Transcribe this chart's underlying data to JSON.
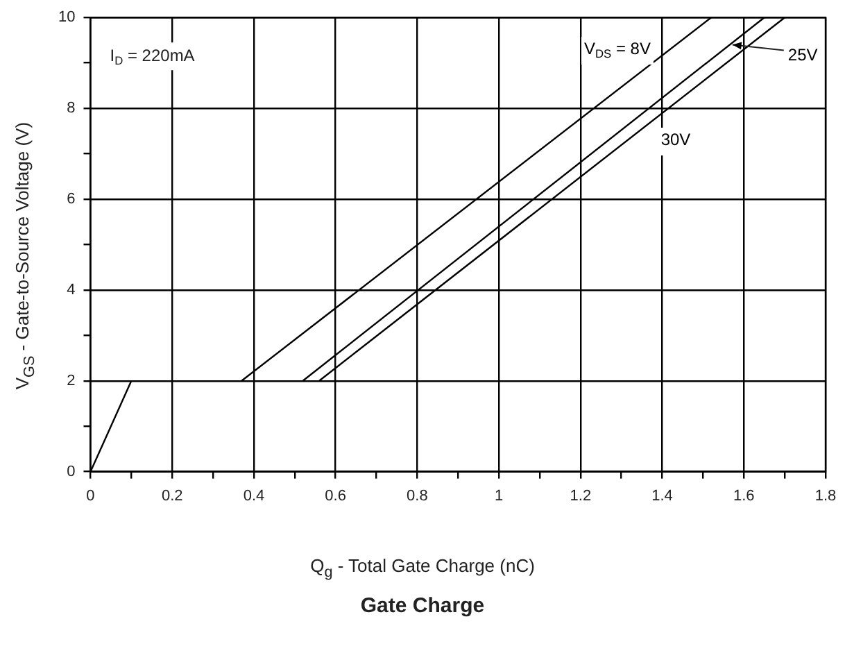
{
  "chart_data": {
    "type": "line",
    "title": "Gate Charge",
    "xlabel": "Q$_{g}$ - Total Gate Charge (nC)",
    "ylabel": "V$_{GS}$ - Gate-to-Source Voltage (V)",
    "xlim": [
      0,
      1.8
    ],
    "ylim": [
      0,
      10
    ],
    "xticks": [
      0,
      {
        "value": 0.1,
        "label": null
      },
      0.2,
      {
        "value": 0.3,
        "label": null
      },
      0.4,
      {
        "value": 0.5,
        "label": null
      },
      0.6,
      {
        "value": 0.7,
        "label": null
      },
      0.8,
      {
        "value": 0.9,
        "label": null
      },
      1,
      {
        "value": 1.1,
        "label": null
      },
      1.2,
      {
        "value": 1.3,
        "label": null
      },
      1.4,
      {
        "value": 1.5,
        "label": null
      },
      1.6,
      {
        "value": 1.7,
        "label": null
      },
      1.8
    ],
    "yticks": [
      0,
      {
        "value": 1,
        "label": null
      },
      2,
      {
        "value": 3,
        "label": null
      },
      4,
      {
        "value": 5,
        "label": null
      },
      6,
      {
        "value": 7,
        "label": null
      },
      8,
      {
        "value": 9,
        "label": null
      },
      10
    ],
    "grid": true,
    "legend": false,
    "marker": "none",
    "line_style": "solid",
    "series": [
      {
        "color": "#000000",
        "x": [
          0,
          0.1
        ],
        "values": [
          0,
          2
        ]
      },
      {
        "name": "V$_{DS}$ = 8V",
        "color": "#000000",
        "x": [
          0.37,
          1.52
        ],
        "values": [
          2,
          10
        ]
      },
      {
        "name": "25V",
        "color": "#000000",
        "x": [
          0.52,
          1.65
        ],
        "values": [
          2,
          10
        ]
      },
      {
        "name": "30V",
        "color": "#000000",
        "x": [
          0.56,
          1.7
        ],
        "values": [
          2,
          10
        ]
      }
    ],
    "annotations": [
      "I$_{D}$ = 220mA"
    ]
  }
}
